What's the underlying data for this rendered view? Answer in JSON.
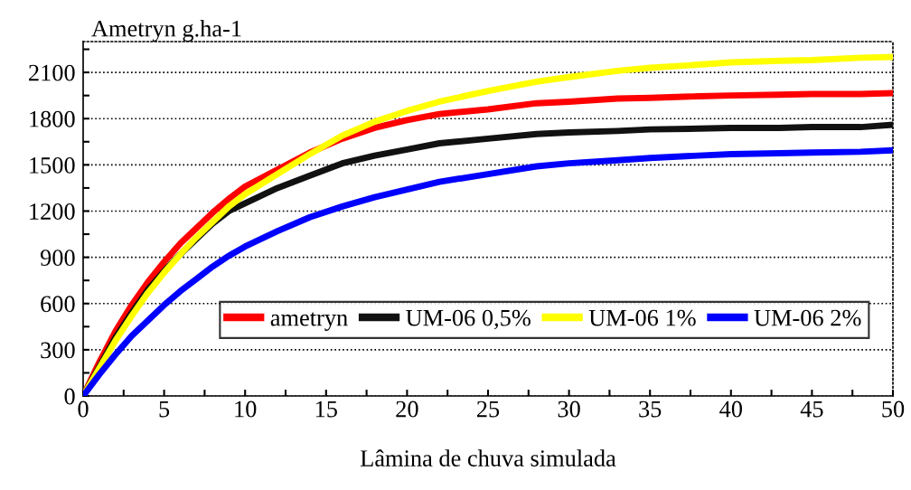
{
  "chart_data": {
    "type": "line",
    "xlabel": "Lâmina de chuva simulada",
    "ylabel": "Ametryn g.ha-1",
    "x": [
      0,
      1,
      2,
      3,
      4,
      5,
      6,
      7,
      8,
      9,
      10,
      12,
      14,
      16,
      18,
      20,
      22,
      25,
      28,
      30,
      33,
      35,
      38,
      40,
      43,
      45,
      48,
      50
    ],
    "series": [
      {
        "name": "ametryn",
        "color": "#ff0000",
        "values": [
          0,
          220,
          420,
          590,
          740,
          870,
          990,
          1090,
          1190,
          1280,
          1360,
          1470,
          1580,
          1670,
          1740,
          1790,
          1830,
          1860,
          1900,
          1910,
          1930,
          1935,
          1945,
          1950,
          1955,
          1960,
          1960,
          1965
        ]
      },
      {
        "name": "UM-06 0,5%",
        "color": "#111111",
        "values": [
          0,
          190,
          380,
          540,
          690,
          810,
          920,
          1020,
          1120,
          1200,
          1250,
          1350,
          1430,
          1510,
          1560,
          1600,
          1640,
          1670,
          1700,
          1710,
          1720,
          1730,
          1735,
          1740,
          1740,
          1745,
          1745,
          1760
        ]
      },
      {
        "name": "UM-06 1%",
        "color": "#ffff00",
        "values": [
          0,
          180,
          360,
          520,
          670,
          800,
          920,
          1030,
          1130,
          1230,
          1310,
          1440,
          1570,
          1690,
          1780,
          1850,
          1910,
          1980,
          2040,
          2070,
          2110,
          2130,
          2150,
          2165,
          2175,
          2180,
          2195,
          2200
        ]
      },
      {
        "name": "UM-06 2%",
        "color": "#0000ff",
        "values": [
          0,
          140,
          270,
          390,
          490,
          590,
          680,
          760,
          840,
          910,
          970,
          1070,
          1160,
          1230,
          1290,
          1340,
          1390,
          1440,
          1490,
          1510,
          1530,
          1545,
          1560,
          1570,
          1575,
          1580,
          1585,
          1595
        ]
      }
    ],
    "xlim": [
      0,
      50
    ],
    "xticks": [
      0,
      5,
      10,
      15,
      20,
      25,
      30,
      35,
      40,
      45,
      50
    ],
    "ylim": [
      0,
      2300
    ],
    "yticks": [
      0,
      300,
      600,
      900,
      1200,
      1500,
      1800,
      2100
    ],
    "grid": "y",
    "legend": "bottom right",
    "marker": "none",
    "line_style": "solid"
  }
}
